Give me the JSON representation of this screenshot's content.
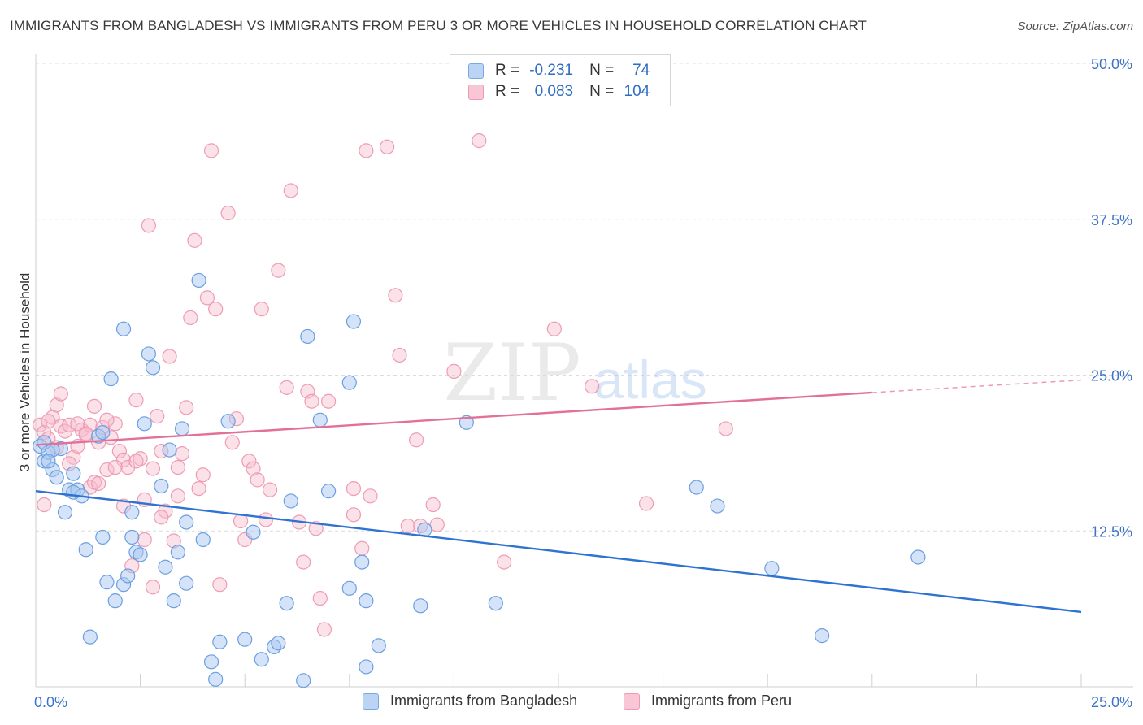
{
  "title": "IMMIGRANTS FROM BANGLADESH VS IMMIGRANTS FROM PERU 3 OR MORE VEHICLES IN HOUSEHOLD CORRELATION CHART",
  "source": "Source: ZipAtlas.com",
  "watermark": {
    "zip": "ZIP",
    "atlas": "atlas"
  },
  "legend": {
    "r_label": "R =",
    "n_label": "N =",
    "entries": [
      {
        "r": "-0.231",
        "n": "74",
        "fill": "#bcd4f3",
        "stroke": "#7aa8e6"
      },
      {
        "r": "0.083",
        "n": "104",
        "fill": "#f9c6d5",
        "stroke": "#ef9ab4"
      }
    ]
  },
  "colors": {
    "blue_fill": "#a9c8f0",
    "blue_stroke": "#6a9fe2",
    "blue_line": "#2f73d2",
    "pink_fill": "#f7bccd",
    "pink_stroke": "#ee9cb6",
    "pink_line": "#e3709a",
    "axis_text": "#3d74c7"
  },
  "chart_data": {
    "type": "scatter",
    "title": "IMMIGRANTS FROM BANGLADESH VS IMMIGRANTS FROM PERU 3 OR MORE VEHICLES IN HOUSEHOLD CORRELATION CHART",
    "xlabel": "",
    "ylabel": "3 or more Vehicles in Household",
    "xlim": [
      0,
      25
    ],
    "ylim": [
      0,
      50
    ],
    "x_tick_labels": [
      "0.0%",
      "25.0%"
    ],
    "y_ticks": [
      12.5,
      25.0,
      37.5,
      50.0
    ],
    "y_tick_labels": [
      "12.5%",
      "25.0%",
      "37.5%",
      "50.0%"
    ],
    "grid": true,
    "legend_position": "top-center",
    "series": [
      {
        "name": "Immigrants from Bangladesh",
        "r": -0.231,
        "n": 74,
        "trend": {
          "x": [
            0,
            25
          ],
          "y": [
            15.7,
            6.0
          ],
          "dashed_from": null
        },
        "points": [
          [
            0.1,
            19.3
          ],
          [
            0.2,
            18.1
          ],
          [
            0.3,
            18.8
          ],
          [
            0.2,
            19.6
          ],
          [
            0.4,
            17.4
          ],
          [
            0.5,
            16.8
          ],
          [
            0.6,
            19.1
          ],
          [
            0.7,
            14.0
          ],
          [
            0.8,
            15.8
          ],
          [
            0.9,
            17.1
          ],
          [
            1.0,
            15.8
          ],
          [
            1.1,
            15.3
          ],
          [
            1.2,
            11.0
          ],
          [
            1.3,
            4.0
          ],
          [
            1.5,
            20.1
          ],
          [
            1.6,
            12.0
          ],
          [
            1.7,
            8.4
          ],
          [
            1.8,
            24.7
          ],
          [
            1.9,
            6.9
          ],
          [
            2.1,
            8.2
          ],
          [
            2.1,
            28.7
          ],
          [
            2.2,
            8.9
          ],
          [
            2.3,
            14.0
          ],
          [
            2.4,
            10.8
          ],
          [
            2.5,
            10.6
          ],
          [
            2.6,
            21.1
          ],
          [
            2.7,
            26.7
          ],
          [
            2.8,
            25.6
          ],
          [
            3.0,
            16.1
          ],
          [
            3.1,
            9.6
          ],
          [
            3.2,
            19.0
          ],
          [
            3.3,
            6.9
          ],
          [
            3.4,
            10.8
          ],
          [
            3.5,
            20.7
          ],
          [
            3.6,
            13.2
          ],
          [
            3.9,
            32.6
          ],
          [
            4.0,
            11.8
          ],
          [
            4.2,
            2.0
          ],
          [
            4.3,
            0.6
          ],
          [
            4.4,
            3.6
          ],
          [
            4.6,
            21.3
          ],
          [
            5.0,
            3.8
          ],
          [
            5.4,
            2.2
          ],
          [
            5.7,
            3.2
          ],
          [
            5.8,
            3.5
          ],
          [
            6.0,
            6.7
          ],
          [
            6.1,
            14.9
          ],
          [
            6.4,
            0.5
          ],
          [
            6.5,
            28.1
          ],
          [
            6.8,
            21.4
          ],
          [
            7.0,
            15.7
          ],
          [
            7.5,
            24.4
          ],
          [
            7.5,
            7.9
          ],
          [
            7.6,
            29.3
          ],
          [
            7.8,
            10.0
          ],
          [
            7.9,
            6.9
          ],
          [
            7.9,
            1.6
          ],
          [
            8.2,
            3.3
          ],
          [
            9.2,
            6.5
          ],
          [
            9.3,
            12.6
          ],
          [
            10.3,
            21.2
          ],
          [
            11.0,
            6.7
          ],
          [
            15.8,
            16.0
          ],
          [
            16.3,
            14.5
          ],
          [
            17.6,
            9.5
          ],
          [
            18.8,
            4.1
          ],
          [
            21.1,
            10.4
          ],
          [
            0.4,
            19.0
          ],
          [
            1.6,
            20.4
          ],
          [
            0.3,
            18.1
          ],
          [
            0.9,
            15.6
          ],
          [
            2.3,
            12.0
          ],
          [
            3.6,
            8.3
          ],
          [
            5.2,
            12.4
          ]
        ]
      },
      {
        "name": "Immigrants from Peru",
        "r": 0.083,
        "n": 104,
        "trend": {
          "x": [
            0,
            20.0
          ],
          "y": [
            19.4,
            23.6
          ],
          "dashed_from": 20.0,
          "dashed_to": [
            25,
            24.6
          ]
        },
        "points": [
          [
            0.1,
            21.0
          ],
          [
            0.2,
            20.4
          ],
          [
            0.3,
            19.9
          ],
          [
            0.4,
            21.6
          ],
          [
            0.5,
            22.6
          ],
          [
            0.6,
            20.9
          ],
          [
            0.7,
            20.5
          ],
          [
            0.8,
            21.0
          ],
          [
            0.9,
            18.4
          ],
          [
            1.0,
            19.3
          ],
          [
            1.1,
            20.6
          ],
          [
            1.2,
            20.2
          ],
          [
            1.3,
            16.0
          ],
          [
            1.3,
            21.0
          ],
          [
            1.4,
            16.4
          ],
          [
            1.5,
            19.6
          ],
          [
            1.6,
            20.8
          ],
          [
            1.7,
            17.4
          ],
          [
            1.8,
            20.0
          ],
          [
            1.9,
            21.1
          ],
          [
            2.0,
            18.9
          ],
          [
            2.1,
            18.2
          ],
          [
            2.2,
            17.6
          ],
          [
            2.3,
            9.7
          ],
          [
            2.4,
            23.0
          ],
          [
            2.5,
            18.3
          ],
          [
            2.6,
            15.0
          ],
          [
            2.7,
            37.0
          ],
          [
            2.8,
            8.0
          ],
          [
            2.9,
            21.7
          ],
          [
            3.0,
            18.9
          ],
          [
            3.1,
            14.1
          ],
          [
            3.2,
            26.5
          ],
          [
            3.3,
            11.7
          ],
          [
            3.4,
            17.6
          ],
          [
            3.5,
            18.7
          ],
          [
            3.6,
            22.4
          ],
          [
            3.7,
            29.6
          ],
          [
            3.8,
            35.8
          ],
          [
            3.9,
            15.9
          ],
          [
            4.0,
            17.0
          ],
          [
            4.1,
            31.2
          ],
          [
            4.2,
            43.0
          ],
          [
            4.3,
            30.3
          ],
          [
            4.4,
            8.2
          ],
          [
            4.6,
            38.0
          ],
          [
            4.7,
            19.6
          ],
          [
            4.8,
            21.5
          ],
          [
            4.9,
            13.3
          ],
          [
            5.0,
            11.8
          ],
          [
            5.1,
            18.1
          ],
          [
            5.2,
            17.5
          ],
          [
            5.3,
            16.6
          ],
          [
            5.4,
            30.3
          ],
          [
            5.6,
            15.8
          ],
          [
            5.8,
            33.4
          ],
          [
            6.0,
            24.0
          ],
          [
            6.1,
            39.8
          ],
          [
            6.3,
            13.2
          ],
          [
            6.4,
            10.0
          ],
          [
            6.5,
            23.7
          ],
          [
            6.6,
            22.9
          ],
          [
            6.8,
            7.1
          ],
          [
            6.9,
            4.6
          ],
          [
            7.0,
            22.9
          ],
          [
            7.6,
            13.8
          ],
          [
            7.6,
            15.9
          ],
          [
            7.8,
            11.1
          ],
          [
            7.9,
            43.0
          ],
          [
            8.0,
            15.3
          ],
          [
            8.4,
            43.3
          ],
          [
            8.6,
            31.4
          ],
          [
            8.7,
            26.6
          ],
          [
            8.9,
            12.9
          ],
          [
            9.1,
            19.8
          ],
          [
            9.2,
            12.9
          ],
          [
            9.5,
            14.6
          ],
          [
            9.6,
            13.0
          ],
          [
            10.0,
            25.3
          ],
          [
            10.6,
            43.8
          ],
          [
            11.2,
            10.0
          ],
          [
            12.4,
            28.7
          ],
          [
            13.3,
            24.1
          ],
          [
            14.6,
            14.7
          ],
          [
            16.5,
            20.7
          ],
          [
            0.2,
            14.6
          ],
          [
            0.3,
            21.3
          ],
          [
            0.5,
            19.2
          ],
          [
            0.6,
            23.5
          ],
          [
            0.8,
            17.9
          ],
          [
            1.0,
            21.1
          ],
          [
            1.2,
            20.3
          ],
          [
            1.4,
            22.5
          ],
          [
            1.5,
            16.3
          ],
          [
            1.7,
            21.4
          ],
          [
            1.9,
            17.6
          ],
          [
            2.1,
            14.5
          ],
          [
            2.4,
            18.1
          ],
          [
            2.6,
            11.8
          ],
          [
            2.8,
            17.5
          ],
          [
            3.0,
            13.6
          ],
          [
            3.4,
            15.3
          ],
          [
            5.5,
            13.4
          ],
          [
            6.7,
            12.7
          ]
        ]
      }
    ]
  },
  "bottom_legend": {
    "items": [
      "Immigrants from Bangladesh",
      "Immigrants from Peru"
    ]
  }
}
